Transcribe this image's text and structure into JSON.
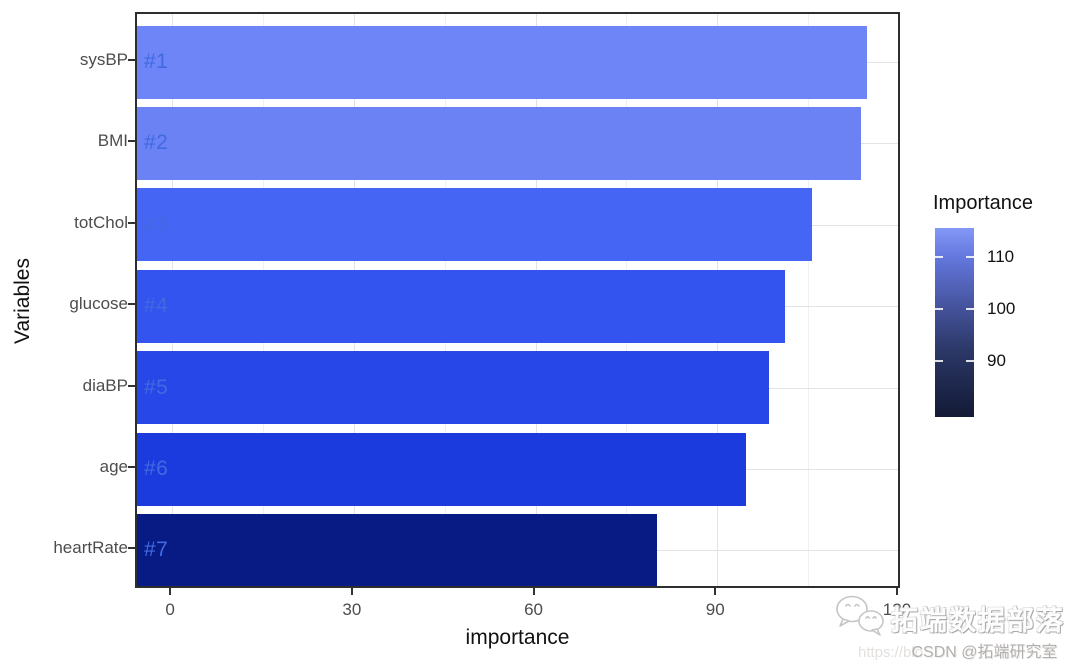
{
  "chart_data": {
    "type": "bar",
    "orientation": "horizontal",
    "xlabel": "importance",
    "ylabel": "Variables",
    "categories": [
      "sysBP",
      "BMI",
      "totChol",
      "glucose",
      "diaBP",
      "age",
      "heartRate"
    ],
    "values": [
      114.7,
      113.8,
      105.6,
      101.2,
      98.5,
      94.7,
      80.0
    ],
    "bar_labels": [
      "#1",
      "#2",
      "#3",
      "#4",
      "#5",
      "#6",
      "#7"
    ],
    "bar_colors": [
      "#6E85F7",
      "#6B82F4",
      "#4565F5",
      "#3354EE",
      "#2847E8",
      "#1C3BDE",
      "#081B85"
    ],
    "bar_label_color": "#4169E1",
    "x_ticks": [
      0,
      30,
      60,
      90,
      120
    ],
    "x_minor_ticks": [
      15,
      45,
      75,
      105
    ],
    "xlim": [
      -5.8,
      120.5
    ],
    "grid": true,
    "legend": {
      "title": "Importance",
      "position": "right",
      "ticks": [
        110,
        100,
        90
      ],
      "range": [
        79.2,
        115.6
      ],
      "gradient_stops": [
        {
          "pos": 0.0,
          "color": "#8498F6"
        },
        {
          "pos": 0.15,
          "color": "#6478DE"
        },
        {
          "pos": 0.41,
          "color": "#46549E"
        },
        {
          "pos": 0.65,
          "color": "#2B3766"
        },
        {
          "pos": 1.0,
          "color": "#131A36"
        }
      ]
    }
  },
  "watermark": {
    "brand_line": "拓端数据部落",
    "url_fragment": "https://blo",
    "csdn_line": "CSDN @拓端研究室"
  }
}
